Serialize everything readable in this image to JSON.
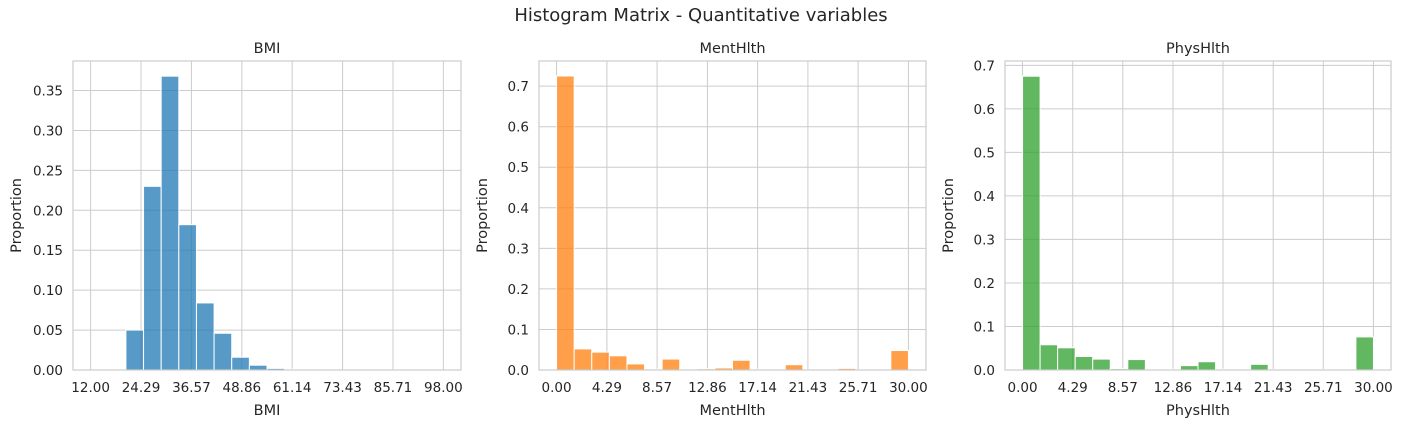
{
  "figure": {
    "suptitle": "Histogram Matrix - Quantitative variables",
    "grid": true,
    "background": "#ffffff",
    "grid_color": "#cccccc",
    "spine_color": "#cccccc"
  },
  "chart_data": [
    {
      "type": "bar",
      "title": "BMI",
      "xlabel": "BMI",
      "ylabel": "Proportion",
      "color": "#1f77b4",
      "xlim": [
        7.7,
        102.3
      ],
      "ylim": [
        0,
        0.387
      ],
      "xticks": [
        12.0,
        24.29,
        36.57,
        48.86,
        61.14,
        73.43,
        85.71,
        98.0
      ],
      "xtick_labels": [
        "12.00",
        "24.29",
        "36.57",
        "48.86",
        "61.14",
        "73.43",
        "85.71",
        "98.00"
      ],
      "yticks": [
        0,
        0.05,
        0.1,
        0.15,
        0.2,
        0.25,
        0.3,
        0.35
      ],
      "ytick_labels": [
        "0.00",
        "0.05",
        "0.10",
        "0.15",
        "0.20",
        "0.25",
        "0.30",
        "0.35"
      ],
      "bins": [
        {
          "x0": 20.6,
          "x1": 24.9,
          "value": 0.05
        },
        {
          "x0": 24.9,
          "x1": 29.2,
          "value": 0.23
        },
        {
          "x0": 29.2,
          "x1": 33.5,
          "value": 0.368
        },
        {
          "x0": 33.5,
          "x1": 37.8,
          "value": 0.182
        },
        {
          "x0": 37.8,
          "x1": 42.1,
          "value": 0.084
        },
        {
          "x0": 42.1,
          "x1": 46.4,
          "value": 0.046
        },
        {
          "x0": 46.4,
          "x1": 50.7,
          "value": 0.016
        },
        {
          "x0": 50.7,
          "x1": 55.0,
          "value": 0.006
        },
        {
          "x0": 55.0,
          "x1": 59.3,
          "value": 0.002
        },
        {
          "x0": 59.3,
          "x1": 63.6,
          "value": 0.001
        }
      ]
    },
    {
      "type": "bar",
      "title": "MentHlth",
      "xlabel": "MentHlth",
      "ylabel": "Proportion",
      "color": "#ff7f0e",
      "xlim": [
        -1.5,
        31.5
      ],
      "ylim": [
        0,
        0.762
      ],
      "xticks": [
        0,
        4.29,
        8.57,
        12.86,
        17.14,
        21.43,
        25.71,
        30.0
      ],
      "xtick_labels": [
        "0.00",
        "4.29",
        "8.57",
        "12.86",
        "17.14",
        "21.43",
        "25.71",
        "30.00"
      ],
      "yticks": [
        0,
        0.1,
        0.2,
        0.3,
        0.4,
        0.5,
        0.6,
        0.7
      ],
      "ytick_labels": [
        "0.0",
        "0.1",
        "0.2",
        "0.3",
        "0.4",
        "0.5",
        "0.6",
        "0.7"
      ],
      "bins": [
        {
          "x0": 0.0,
          "x1": 1.5,
          "value": 0.725
        },
        {
          "x0": 1.5,
          "x1": 3.0,
          "value": 0.052
        },
        {
          "x0": 3.0,
          "x1": 4.5,
          "value": 0.044
        },
        {
          "x0": 4.5,
          "x1": 6.0,
          "value": 0.035
        },
        {
          "x0": 6.0,
          "x1": 7.5,
          "value": 0.015
        },
        {
          "x0": 7.5,
          "x1": 9.0,
          "value": 0.002
        },
        {
          "x0": 9.0,
          "x1": 10.5,
          "value": 0.027
        },
        {
          "x0": 10.5,
          "x1": 12.0,
          "value": 0.002
        },
        {
          "x0": 12.0,
          "x1": 13.5,
          "value": 0.003
        },
        {
          "x0": 13.5,
          "x1": 15.0,
          "value": 0.005
        },
        {
          "x0": 15.0,
          "x1": 16.5,
          "value": 0.024
        },
        {
          "x0": 16.5,
          "x1": 18.0,
          "value": 0.002
        },
        {
          "x0": 18.0,
          "x1": 19.5,
          "value": 0.002
        },
        {
          "x0": 19.5,
          "x1": 21.0,
          "value": 0.013
        },
        {
          "x0": 21.0,
          "x1": 22.5,
          "value": 0.001
        },
        {
          "x0": 22.5,
          "x1": 24.0,
          "value": 0.001
        },
        {
          "x0": 24.0,
          "x1": 25.5,
          "value": 0.004
        },
        {
          "x0": 25.5,
          "x1": 27.0,
          "value": 0.001
        },
        {
          "x0": 27.0,
          "x1": 28.5,
          "value": 0.002
        },
        {
          "x0": 28.5,
          "x1": 30.0,
          "value": 0.048
        }
      ]
    },
    {
      "type": "bar",
      "title": "PhysHlth",
      "xlabel": "PhysHlth",
      "ylabel": "Proportion",
      "color": "#2ca02c",
      "xlim": [
        -1.5,
        31.5
      ],
      "ylim": [
        0,
        0.71
      ],
      "xticks": [
        0,
        4.29,
        8.57,
        12.86,
        17.14,
        21.43,
        25.71,
        30.0
      ],
      "xtick_labels": [
        "0.00",
        "4.29",
        "8.57",
        "12.86",
        "17.14",
        "21.43",
        "25.71",
        "30.00"
      ],
      "yticks": [
        0,
        0.1,
        0.2,
        0.3,
        0.4,
        0.5,
        0.6,
        0.7
      ],
      "ytick_labels": [
        "0.0",
        "0.1",
        "0.2",
        "0.3",
        "0.4",
        "0.5",
        "0.6",
        "0.7"
      ],
      "bins": [
        {
          "x0": 0.0,
          "x1": 1.5,
          "value": 0.675
        },
        {
          "x0": 1.5,
          "x1": 3.0,
          "value": 0.058
        },
        {
          "x0": 3.0,
          "x1": 4.5,
          "value": 0.051
        },
        {
          "x0": 4.5,
          "x1": 6.0,
          "value": 0.031
        },
        {
          "x0": 6.0,
          "x1": 7.5,
          "value": 0.025
        },
        {
          "x0": 7.5,
          "x1": 9.0,
          "value": 0.003
        },
        {
          "x0": 9.0,
          "x1": 10.5,
          "value": 0.024
        },
        {
          "x0": 10.5,
          "x1": 12.0,
          "value": 0.002
        },
        {
          "x0": 12.0,
          "x1": 13.5,
          "value": 0.002
        },
        {
          "x0": 13.5,
          "x1": 15.0,
          "value": 0.01
        },
        {
          "x0": 15.0,
          "x1": 16.5,
          "value": 0.019
        },
        {
          "x0": 16.5,
          "x1": 18.0,
          "value": 0.002
        },
        {
          "x0": 18.0,
          "x1": 19.5,
          "value": 0.001
        },
        {
          "x0": 19.5,
          "x1": 21.0,
          "value": 0.013
        },
        {
          "x0": 21.0,
          "x1": 22.5,
          "value": 0.001
        },
        {
          "x0": 22.5,
          "x1": 24.0,
          "value": 0.001
        },
        {
          "x0": 24.0,
          "x1": 25.5,
          "value": 0.002
        },
        {
          "x0": 25.5,
          "x1": 27.0,
          "value": 0.001
        },
        {
          "x0": 27.0,
          "x1": 28.5,
          "value": 0.002
        },
        {
          "x0": 28.5,
          "x1": 30.0,
          "value": 0.076
        }
      ]
    }
  ]
}
